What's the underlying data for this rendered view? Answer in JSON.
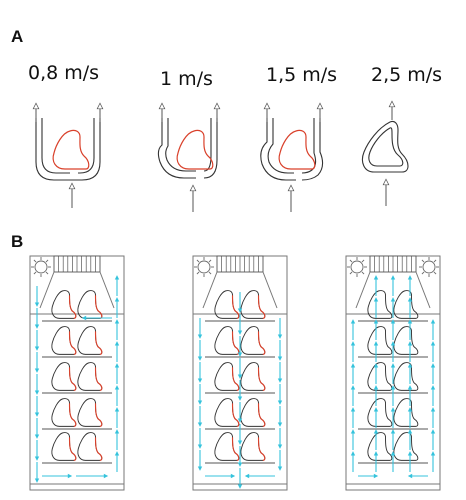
{
  "panels": {
    "a": {
      "letter": "A"
    },
    "b": {
      "letter": "B"
    }
  },
  "speeds": [
    {
      "label": "0,8 m/s"
    },
    {
      "label": "1 m/s"
    },
    {
      "label": "1,5 m/s"
    },
    {
      "label": "2,5 m/s"
    }
  ],
  "colors": {
    "outline": "#333333",
    "body_red": "#d9412b",
    "flow_cyan": "#35c3dc",
    "line_gray": "#777777"
  },
  "racks": {
    "shelves_per_rack": 5,
    "bodies_per_shelf": 2,
    "flow_patterns": [
      "perimeter-loop",
      "downward-sides",
      "upward-channels"
    ]
  }
}
